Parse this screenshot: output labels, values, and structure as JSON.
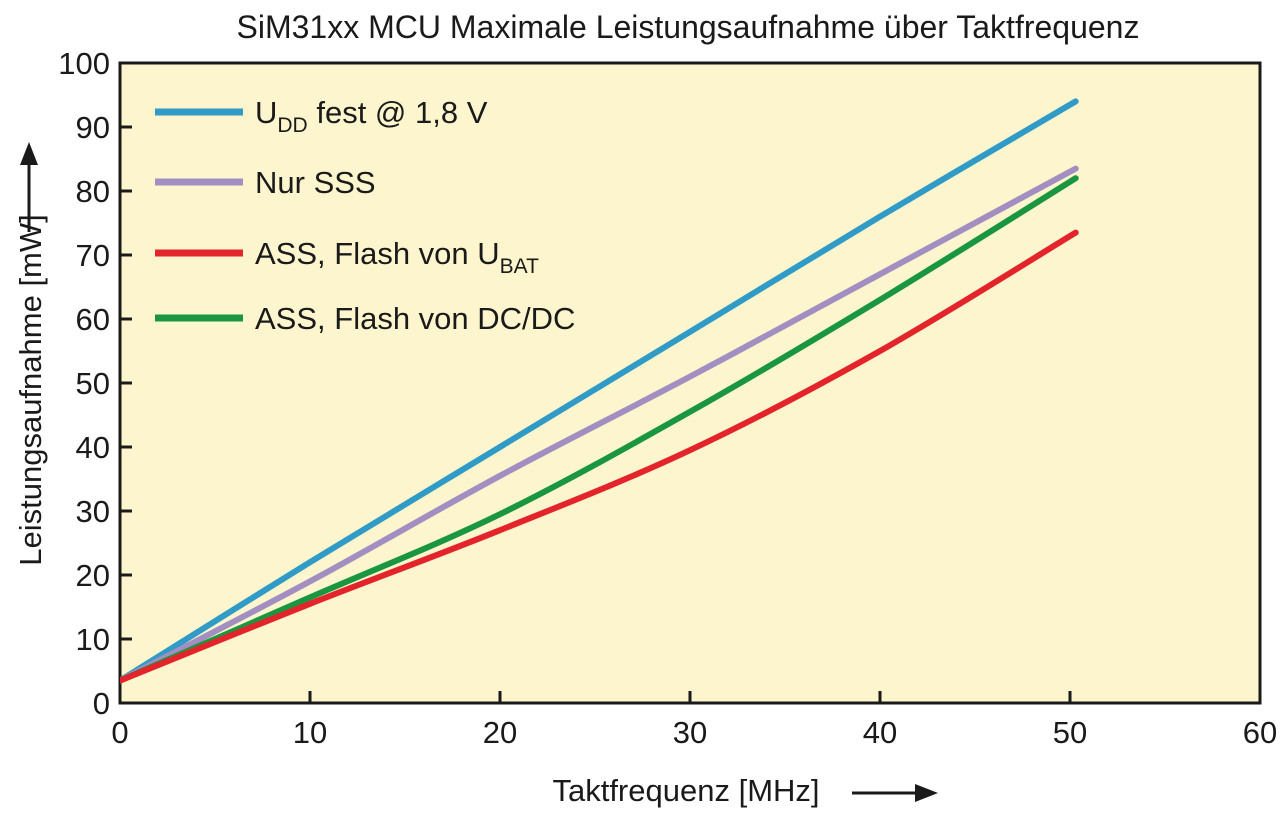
{
  "chart_data": {
    "type": "line",
    "title": "SiM31xx MCU Maximale Leistungsaufnahme über Taktfrequenz",
    "xlabel": "Taktfrequenz [MHz]",
    "ylabel": "Leistungsaufnahme [mW]",
    "xlim": [
      0,
      60
    ],
    "ylim": [
      0,
      100
    ],
    "x_ticks": [
      0,
      10,
      20,
      30,
      40,
      50,
      60
    ],
    "y_ticks": [
      0,
      10,
      20,
      30,
      40,
      50,
      60,
      70,
      80,
      90,
      100
    ],
    "grid": false,
    "legend_position": "top-left",
    "background_color": "#fdf5cd",
    "series": [
      {
        "label_main": "U",
        "label_sub": "DD",
        "label_rest": " fest @ 1,8 V",
        "color": "#2f9bc6",
        "x": [
          0,
          10,
          20,
          30,
          40,
          50.3
        ],
        "y": [
          3.5,
          22,
          40,
          58,
          76,
          94
        ]
      },
      {
        "label_main": "Nur SSS",
        "label_sub": "",
        "label_rest": "",
        "color": "#a38ec2",
        "x": [
          0,
          10,
          20,
          30,
          40,
          50.3
        ],
        "y": [
          3.5,
          19,
          35.5,
          51,
          67,
          83.5
        ]
      },
      {
        "label_main": "ASS, Flash von U",
        "label_sub": "BAT",
        "label_rest": "",
        "color": "#e3242b",
        "x": [
          0,
          10,
          20,
          30,
          40,
          50.3
        ],
        "y": [
          3.5,
          15.5,
          27,
          39.5,
          55,
          73.5
        ]
      },
      {
        "label_main": "ASS, Flash von DC/DC",
        "label_sub": "",
        "label_rest": "",
        "color": "#1a9640",
        "x": [
          0,
          10,
          20,
          30,
          40,
          50.3
        ],
        "y": [
          3.5,
          16.5,
          29.5,
          45.5,
          63,
          82
        ]
      }
    ]
  }
}
